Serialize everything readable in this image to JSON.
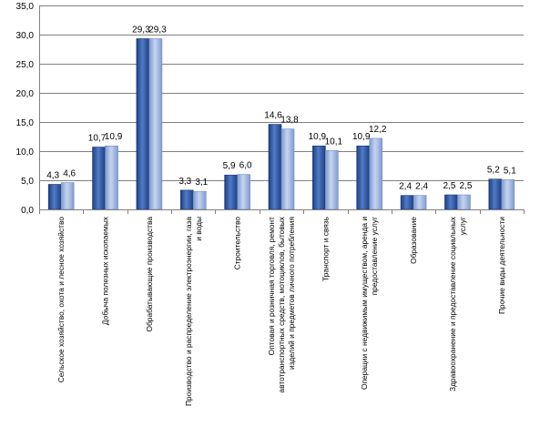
{
  "chart_data": {
    "type": "bar",
    "title": "",
    "xlabel": "",
    "ylabel": "",
    "ylim": [
      0,
      35
    ],
    "yticks": [
      "0,0",
      "5,0",
      "10,0",
      "15,0",
      "20,0",
      "25,0",
      "30,0",
      "35,0"
    ],
    "grid": true,
    "legend": "none",
    "categories": [
      [
        "Сельское хозяйство, охота и лесное хозяйство"
      ],
      [
        "Добыча полезных ископаемых"
      ],
      [
        "Обрабатывающие производства"
      ],
      [
        "Производство и распределение электроэнергии, газа",
        "и воды"
      ],
      [
        "Строительство"
      ],
      [
        "Оптовая и розничная торговля, ремонт",
        "автотранспортных средств, мотоциклов, бытовых",
        "изделий и предметов личного потребления"
      ],
      [
        "Транспорт и связь"
      ],
      [
        "Операции с недвижимым имуществом, аренда и",
        "предоставление услуг"
      ],
      [
        "Образование"
      ],
      [
        "Здравоохранение и предоставление социальных",
        "услуг"
      ],
      [
        "Прочие виды деятельности"
      ]
    ],
    "series": [
      {
        "values": [
          4.3,
          10.7,
          29.3,
          3.3,
          5.9,
          14.6,
          10.9,
          10.9,
          2.4,
          2.5,
          5.2
        ],
        "labels": [
          "4,3",
          "10,7",
          "29,3",
          "3,3",
          "5,9",
          "14,6",
          "10,9",
          "10,9",
          "2,4",
          "2,5",
          "5,2"
        ],
        "color": "#2f5496"
      },
      {
        "values": [
          4.6,
          10.9,
          29.3,
          3.1,
          6.0,
          13.8,
          10.1,
          12.2,
          2.4,
          2.5,
          5.1
        ],
        "labels": [
          "4,6",
          "10,9",
          "29,3",
          "3,1",
          "6,0",
          "13,8",
          "10,1",
          "12,2",
          "2,4",
          "2,5",
          "5,1"
        ],
        "color": "#8ea9db"
      }
    ]
  }
}
